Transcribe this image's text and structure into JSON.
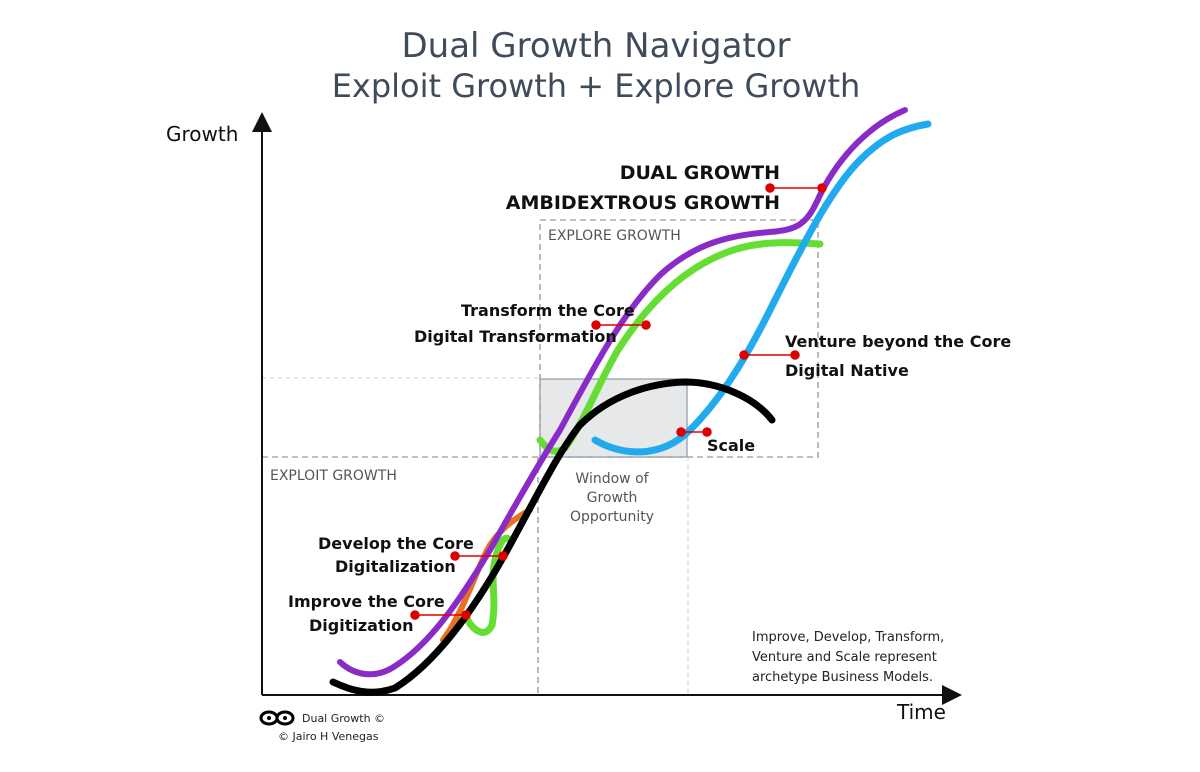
{
  "title": "Dual Growth Navigator",
  "subtitle": "Exploit Growth + Explore Growth",
  "axes": {
    "y_label": "Growth",
    "x_label": "Time"
  },
  "zones": {
    "explore": "EXPLORE GROWTH",
    "exploit": "EXPLOIT GROWTH",
    "window_lines": [
      "Window of",
      "Growth",
      "Opportunity"
    ]
  },
  "headline": {
    "line1": "DUAL GROWTH",
    "line2": "AMBIDEXTROUS GROWTH"
  },
  "labels": {
    "transform": [
      "Transform the Core",
      "Digital Transformation"
    ],
    "venture": [
      "Venture beyond the Core",
      "Digital Native"
    ],
    "develop": [
      "Develop the Core",
      "Digitalization"
    ],
    "improve": [
      "Improve the Core",
      "Digitization"
    ],
    "scale": "Scale"
  },
  "note_lines": [
    "Improve, Develop, Transform,",
    "Venture and Scale represent",
    "archetype Business Models."
  ],
  "footer": {
    "brand": "Dual Growth ©",
    "author": "© Jairo H Venegas"
  },
  "colors": {
    "purple": "#8a2bc8",
    "green": "#66dd33",
    "blue": "#22aaee",
    "black": "#000000",
    "orange": "#e87020",
    "marker": "#dd0000",
    "title": "#3f4a5a",
    "dashed": "#aaaaaa"
  },
  "icons": {
    "footer_logo": "infinity-logo-icon"
  }
}
